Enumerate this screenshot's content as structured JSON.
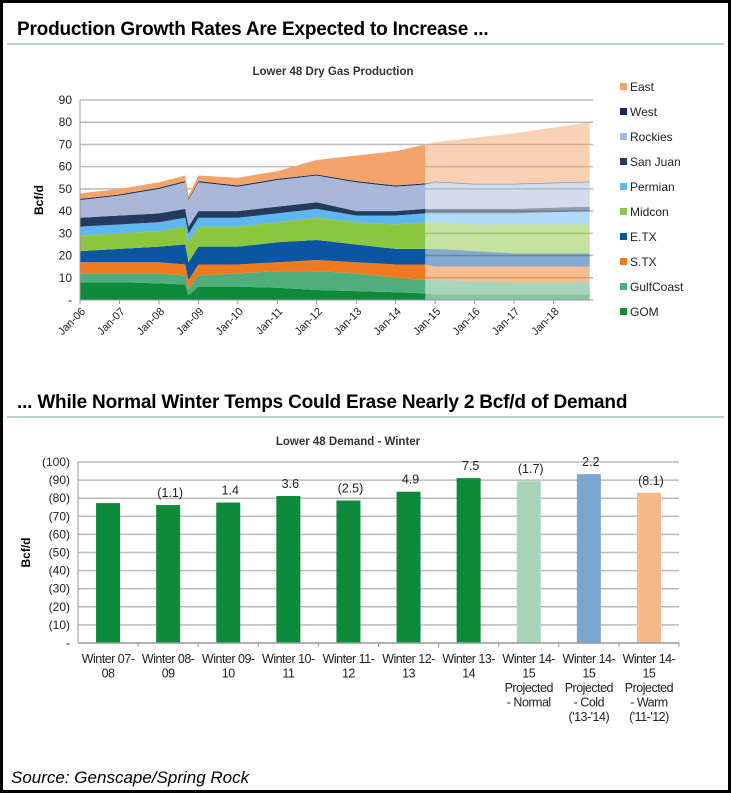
{
  "headings": {
    "top": "Production Growth Rates Are Expected to Increase ...",
    "bottom": "... While Normal Winter Temps Could Erase Nearly 2 Bcf/d of Demand"
  },
  "source": "Source: Genscape/Spring Rock",
  "chart_data": [
    {
      "type": "area",
      "stacked": true,
      "title": "Lower 48 Dry Gas Production",
      "ylabel": "Bcf/d",
      "xlabel": "",
      "ylim": [
        0,
        90
      ],
      "yticks": [
        "-",
        "10",
        "20",
        "30",
        "40",
        "50",
        "60",
        "70",
        "80",
        "90"
      ],
      "xticks": [
        "Jan-06",
        "Jan-07",
        "Jan-08",
        "Jan-09",
        "Jan-10",
        "Jan-11",
        "Jan-12",
        "Jan-13",
        "Jan-14",
        "Jan-15",
        "Jan-16",
        "Jan-17",
        "Jan-18"
      ],
      "grid": true,
      "legend": "right",
      "projection_start": "2014-10",
      "x": [
        "2006-01",
        "2007-01",
        "2008-01",
        "2008-09",
        "2008-10",
        "2009-01",
        "2010-01",
        "2011-01",
        "2012-01",
        "2013-01",
        "2014-01",
        "2014-10",
        "2015-01",
        "2016-01",
        "2017-01",
        "2018-12"
      ],
      "series": [
        {
          "name": "GOM",
          "color": "#0d8a3c",
          "values": [
            8,
            8,
            7.5,
            7,
            2,
            6,
            6,
            5.5,
            4.5,
            4,
            3.5,
            3,
            2.5,
            2.5,
            2.5,
            2.5
          ]
        },
        {
          "name": "GulfCoast",
          "color": "#4fae7b",
          "values": [
            4,
            4,
            4.5,
            4,
            3,
            5,
            6,
            7.5,
            8.5,
            8,
            6.5,
            6,
            6.5,
            6,
            5.5,
            5.5
          ]
        },
        {
          "name": "S.TX",
          "color": "#f07b1f",
          "values": [
            5,
            5,
            5,
            5,
            4,
            5,
            4,
            4,
            5,
            5,
            6,
            7,
            6,
            6.5,
            7,
            7
          ]
        },
        {
          "name": "E.TX",
          "color": "#0a56a0",
          "values": [
            5,
            6,
            7,
            9,
            8,
            8,
            8,
            9,
            9,
            8,
            7,
            7,
            8,
            7,
            6,
            6
          ]
        },
        {
          "name": "Midcon",
          "color": "#8cc63f",
          "values": [
            7,
            7,
            7,
            8,
            9,
            9,
            9,
            9,
            10,
            10,
            11,
            12,
            12,
            12,
            13,
            13
          ]
        },
        {
          "name": "Permian",
          "color": "#5eb7f0",
          "values": [
            4,
            4,
            4,
            4,
            4,
            4,
            4,
            4,
            4,
            3,
            4,
            4,
            4,
            5,
            5,
            6
          ]
        },
        {
          "name": "San Juan",
          "color": "#243a5e",
          "values": [
            4,
            4,
            4,
            4,
            3,
            3,
            3,
            3,
            3,
            2,
            2,
            2,
            2,
            2,
            2,
            2
          ]
        },
        {
          "name": "Rockies",
          "color": "#a9b8d9",
          "values": [
            8,
            9,
            11,
            12,
            12,
            13,
            11,
            12,
            12,
            13,
            11,
            11,
            12,
            11,
            11,
            11
          ]
        },
        {
          "name": "West",
          "color": "#0f2a5c",
          "values": [
            0.5,
            0.5,
            0.5,
            0.5,
            0.5,
            0.5,
            0.5,
            0.5,
            0.5,
            0.5,
            0.5,
            0.5,
            0.3,
            0.3,
            0.3,
            0.3
          ]
        },
        {
          "name": "East",
          "color": "#f4a46a",
          "values": [
            2.5,
            2.5,
            2.5,
            2.5,
            1.5,
            2.5,
            3.5,
            3.5,
            6.5,
            11.5,
            15.5,
            17.5,
            17.7,
            20.7,
            22.7,
            26.7
          ]
        }
      ]
    },
    {
      "type": "bar",
      "title": "Lower 48 Demand - Winter",
      "ylabel": "Bcf/d",
      "xlabel": "",
      "ylim": [
        0,
        100
      ],
      "yticks": [
        "-",
        "(10)",
        "(20)",
        "(30)",
        "(40)",
        "(50)",
        "(60)",
        "(70)",
        "(80)",
        "(90)",
        "(100)"
      ],
      "grid": true,
      "categories": [
        [
          "Winter 07-",
          "08"
        ],
        [
          "Winter 08-",
          "09"
        ],
        [
          "Winter 09-",
          "10"
        ],
        [
          "Winter 10-",
          "11"
        ],
        [
          "Winter 11-",
          "12"
        ],
        [
          "Winter 12-",
          "13"
        ],
        [
          "Winter 13-",
          "14"
        ],
        [
          "Winter 14-",
          "15",
          "Projected",
          "- Normal"
        ],
        [
          "Winter 14-",
          "15",
          "Projected",
          "- Cold",
          "('13-'14)"
        ],
        [
          "Winter 14-",
          "15",
          "Projected",
          "- Warm",
          "('11-'12)"
        ]
      ],
      "values": [
        77.3,
        76.2,
        77.6,
        81.2,
        78.7,
        83.6,
        91.1,
        89.4,
        93.3,
        83.0
      ],
      "data_labels": [
        "",
        "(1.1)",
        "1.4",
        "3.6",
        "(2.5)",
        "4.9",
        "7.5",
        "(1.7)",
        "2.2",
        "(8.1)"
      ],
      "colors": [
        "#0d8a3c",
        "#0d8a3c",
        "#0d8a3c",
        "#0d8a3c",
        "#0d8a3c",
        "#0d8a3c",
        "#0d8a3c",
        "#a6d4b8",
        "#7aa6d0",
        "#f7b78a"
      ]
    }
  ]
}
